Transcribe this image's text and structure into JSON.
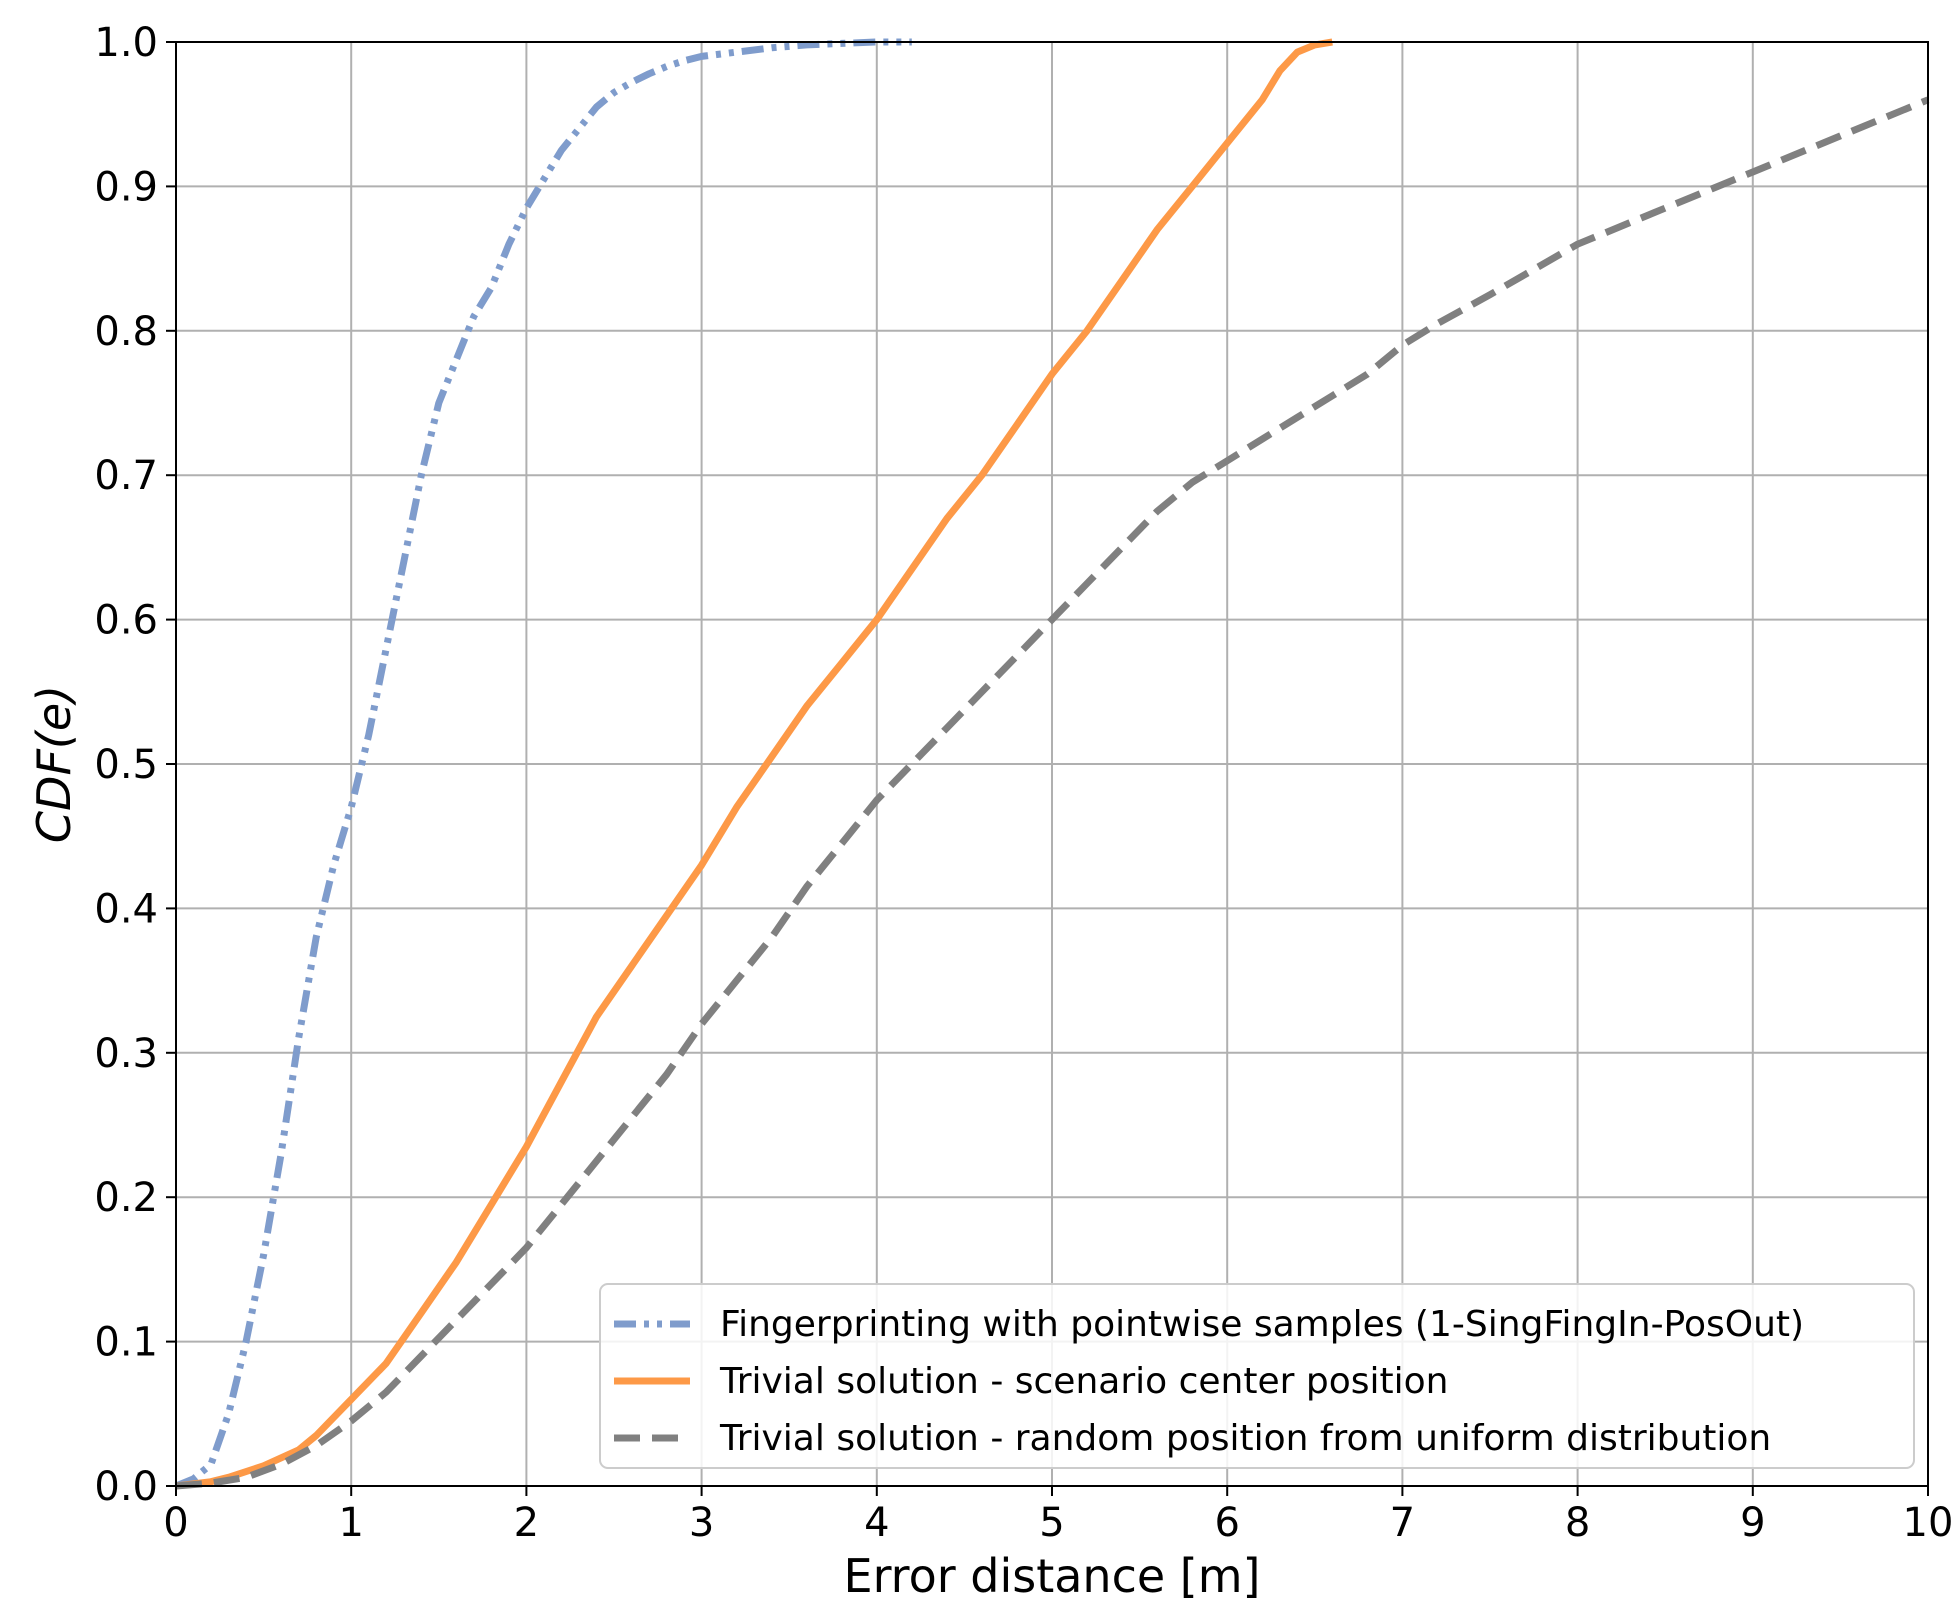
{
  "chart_data": {
    "type": "line",
    "xlabel": "Error distance [m]",
    "ylabel": "CDF(e)",
    "xlim": [
      0,
      10
    ],
    "ylim": [
      0,
      1
    ],
    "xticks": [
      "0",
      "1",
      "2",
      "3",
      "4",
      "5",
      "6",
      "7",
      "8",
      "9",
      "10"
    ],
    "yticks": [
      "0.0",
      "0.1",
      "0.2",
      "0.3",
      "0.4",
      "0.5",
      "0.6",
      "0.7",
      "0.8",
      "0.9",
      "1.0"
    ],
    "grid": true,
    "legend_position": "bottom-right",
    "series": [
      {
        "name": "Fingerprinting with pointwise samples (1-SingFingIn-PosOut)",
        "color": "#7f9ccc",
        "style": "dash-dot-dot",
        "x": [
          0,
          0.1,
          0.2,
          0.3,
          0.4,
          0.5,
          0.6,
          0.7,
          0.8,
          0.9,
          1.0,
          1.1,
          1.2,
          1.3,
          1.4,
          1.5,
          1.6,
          1.7,
          1.8,
          1.9,
          2.0,
          2.1,
          2.2,
          2.3,
          2.4,
          2.5,
          2.6,
          2.7,
          2.8,
          2.9,
          3.0,
          3.2,
          3.4,
          3.6,
          3.8,
          4.0,
          4.2
        ],
        "y": [
          0,
          0.005,
          0.015,
          0.05,
          0.1,
          0.16,
          0.23,
          0.31,
          0.38,
          0.43,
          0.47,
          0.52,
          0.58,
          0.64,
          0.7,
          0.75,
          0.78,
          0.81,
          0.83,
          0.86,
          0.885,
          0.905,
          0.925,
          0.94,
          0.955,
          0.965,
          0.972,
          0.978,
          0.983,
          0.987,
          0.99,
          0.993,
          0.996,
          0.998,
          0.999,
          1.0,
          1.0
        ]
      },
      {
        "name": "Trivial solution - scenario center position",
        "color": "#fd9947",
        "style": "solid",
        "x": [
          0,
          0.2,
          0.3,
          0.5,
          0.7,
          0.8,
          1.0,
          1.2,
          1.4,
          1.6,
          1.8,
          2.0,
          2.2,
          2.4,
          2.6,
          2.8,
          3.0,
          3.2,
          3.4,
          3.6,
          3.8,
          4.0,
          4.2,
          4.4,
          4.6,
          4.8,
          5.0,
          5.2,
          5.4,
          5.6,
          5.8,
          6.0,
          6.2,
          6.3,
          6.4,
          6.5,
          6.6
        ],
        "y": [
          0,
          0.003,
          0.006,
          0.014,
          0.025,
          0.035,
          0.06,
          0.085,
          0.12,
          0.155,
          0.195,
          0.235,
          0.28,
          0.325,
          0.36,
          0.395,
          0.43,
          0.47,
          0.505,
          0.54,
          0.57,
          0.6,
          0.635,
          0.67,
          0.7,
          0.735,
          0.77,
          0.8,
          0.835,
          0.87,
          0.9,
          0.93,
          0.96,
          0.98,
          0.993,
          0.998,
          1.0
        ]
      },
      {
        "name": "Trivial solution - random position from uniform distribution",
        "color": "#808080",
        "style": "dashed",
        "x": [
          0,
          0.2,
          0.4,
          0.6,
          0.8,
          1.0,
          1.2,
          1.4,
          1.6,
          1.8,
          2.0,
          2.2,
          2.4,
          2.6,
          2.8,
          3.0,
          3.2,
          3.4,
          3.6,
          3.8,
          4.0,
          4.2,
          4.4,
          4.6,
          4.8,
          5.0,
          5.2,
          5.4,
          5.6,
          5.8,
          6.0,
          6.2,
          6.4,
          6.6,
          6.8,
          7.0,
          7.2,
          7.5,
          8.0,
          8.5,
          9.0,
          9.5,
          10.0
        ],
        "y": [
          0,
          0.002,
          0.006,
          0.015,
          0.028,
          0.045,
          0.065,
          0.09,
          0.115,
          0.14,
          0.165,
          0.195,
          0.225,
          0.255,
          0.285,
          0.32,
          0.35,
          0.38,
          0.415,
          0.445,
          0.475,
          0.5,
          0.525,
          0.55,
          0.575,
          0.6,
          0.625,
          0.65,
          0.675,
          0.695,
          0.71,
          0.725,
          0.74,
          0.755,
          0.77,
          0.79,
          0.805,
          0.825,
          0.86,
          0.885,
          0.91,
          0.935,
          0.96
        ]
      }
    ]
  }
}
